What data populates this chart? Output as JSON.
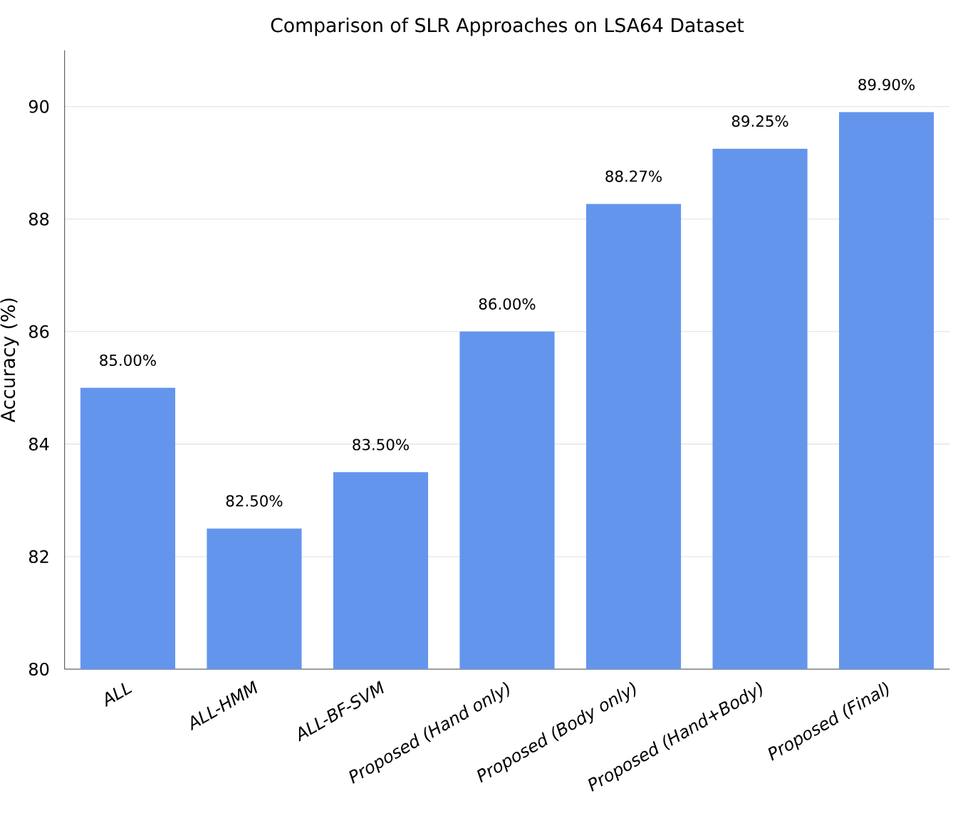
{
  "chart_data": {
    "type": "bar",
    "title": "Comparison of SLR Approaches on LSA64 Dataset",
    "ylabel": "Accuracy (%)",
    "categories": [
      "ALL",
      "ALL-HMM",
      "ALL-BF-SVM",
      "Proposed (Hand only)",
      "Proposed (Body only)",
      "Proposed (Hand+Body)",
      "Proposed (Final)"
    ],
    "values": [
      85.0,
      82.5,
      83.5,
      86.0,
      88.27,
      89.25,
      89.9
    ],
    "value_labels": [
      "85.00%",
      "82.50%",
      "83.50%",
      "86.00%",
      "88.27%",
      "89.25%",
      "89.90%"
    ],
    "color": "#6495ed",
    "ylim": [
      80,
      91
    ],
    "yticks": [
      80,
      82,
      84,
      86,
      88,
      90
    ],
    "grid": "y"
  }
}
